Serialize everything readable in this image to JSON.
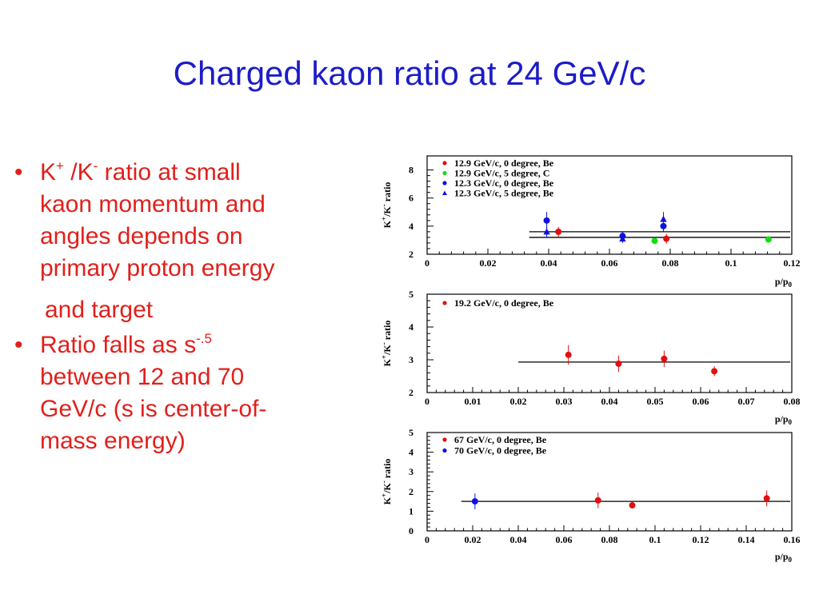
{
  "slide": {
    "title": "Charged kaon ratio at 24 GeV/c",
    "bullets": {
      "b1_k": "K",
      "b1_plus": "+",
      "b1_mid": " /K",
      "b1_minus": "-",
      "b1_rest": "  ratio at small",
      "b1_line2": "kaon momentum and",
      "b1_line3": "angles depends on",
      "b1_line4": "primary proton energy",
      "b1_cont": "and target",
      "b2_pre": "Ratio falls as s",
      "b2_exp": "-.5",
      "b2_line2": "between 12 and 70",
      "b2_line3": "GeV/c (s is center-of-",
      "b2_line4": "mass energy)"
    }
  },
  "colors": {
    "title": "#1c1cc8",
    "bullet_text": "#e0201c",
    "red": "#e01010",
    "green": "#10e010",
    "blue": "#1010e0"
  },
  "chart_data": [
    {
      "type": "scatter",
      "xlabel": "p/p0",
      "ylabel": "K+/K- ratio",
      "xlim": [
        0,
        0.125
      ],
      "ylim": [
        2,
        9
      ],
      "xticks": [
        "0",
        "0.02",
        "0.04",
        "0.06",
        "0.08",
        "0.1",
        "0.12"
      ],
      "yticks": [
        "2",
        "4",
        "6",
        "8"
      ],
      "legend_position": "top-left",
      "series": [
        {
          "name": "12.9 GeV/c, 0 degree, Be",
          "color": "red",
          "marker": "circle",
          "x": [
            0.045,
            0.082
          ],
          "y": [
            3.6,
            3.1
          ],
          "err": [
            0.35,
            0.35
          ]
        },
        {
          "name": "12.9 GeV/c, 5 degree, C",
          "color": "green",
          "marker": "circle",
          "x": [
            0.078,
            0.117
          ],
          "y": [
            2.95,
            3.05
          ],
          "err": [
            0.15,
            0.15
          ]
        },
        {
          "name": "12.3 GeV/c, 0 degree, Be",
          "color": "blue",
          "marker": "circle",
          "x": [
            0.041,
            0.067,
            0.081
          ],
          "y": [
            4.4,
            3.3,
            4.0
          ],
          "err": [
            0.6,
            0.3,
            0.4
          ]
        },
        {
          "name": "12.3 GeV/c, 5 degree, Be",
          "color": "blue",
          "marker": "triangle",
          "x": [
            0.041,
            0.067,
            0.081
          ],
          "y": [
            3.6,
            3.1,
            4.5
          ],
          "err": [
            0.4,
            0.3,
            0.5
          ]
        }
      ],
      "fit_lines": [
        {
          "x": [
            0.035,
            0.125
          ],
          "y": [
            3.6,
            3.6
          ]
        },
        {
          "x": [
            0.035,
            0.125
          ],
          "y": [
            3.2,
            3.2
          ]
        }
      ]
    },
    {
      "type": "scatter",
      "xlabel": "p/p0",
      "ylabel": "K+/K- ratio",
      "xlim": [
        0,
        0.08
      ],
      "ylim": [
        2,
        5
      ],
      "xticks": [
        "0",
        "0.01",
        "0.02",
        "0.03",
        "0.04",
        "0.05",
        "0.06",
        "0.07",
        "0.08"
      ],
      "yticks": [
        "2",
        "3",
        "4",
        "5"
      ],
      "legend_position": "top-left",
      "series": [
        {
          "name": "19.2 GeV/c, 0 degree, Be",
          "color": "red",
          "marker": "circle",
          "x": [
            0.031,
            0.042,
            0.052,
            0.063
          ],
          "y": [
            3.15,
            2.88,
            3.03,
            2.65
          ],
          "err": [
            0.3,
            0.25,
            0.25,
            0.15
          ]
        }
      ],
      "fit_lines": [
        {
          "x": [
            0.02,
            0.08
          ],
          "y": [
            2.93,
            2.93
          ]
        }
      ]
    },
    {
      "type": "scatter",
      "xlabel": "p/p0",
      "ylabel": "K+/K- ratio",
      "xlim": [
        0,
        0.16
      ],
      "ylim": [
        0,
        5
      ],
      "xticks": [
        "0",
        "0.02",
        "0.04",
        "0.06",
        "0.08",
        "0.1",
        "0.12",
        "0.14",
        "0.16"
      ],
      "yticks": [
        "0",
        "1",
        "2",
        "3",
        "4",
        "5"
      ],
      "legend_position": "top-left",
      "series": [
        {
          "name": "67 GeV/c, 0 degree, Be",
          "color": "red",
          "marker": "circle",
          "x": [
            0.075,
            0.09,
            0.149
          ],
          "y": [
            1.55,
            1.3,
            1.65
          ],
          "err": [
            0.4,
            0.15,
            0.4
          ]
        },
        {
          "name": "70 GeV/c, 0 degree, Be",
          "color": "blue",
          "marker": "circle",
          "x": [
            0.021
          ],
          "y": [
            1.5
          ],
          "err": [
            0.4
          ]
        }
      ],
      "fit_lines": [
        {
          "x": [
            0.015,
            0.16
          ],
          "y": [
            1.5,
            1.5
          ]
        }
      ]
    }
  ]
}
